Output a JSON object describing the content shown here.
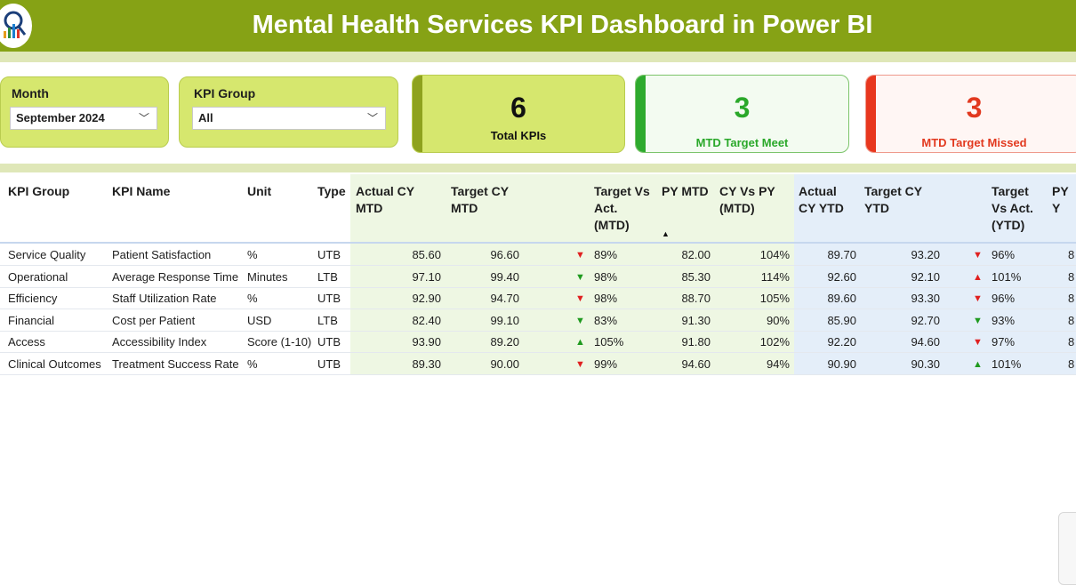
{
  "header": {
    "title": "Mental Health Services KPI Dashboard in Power BI",
    "logo_icon": "chart-logo-icon"
  },
  "slicers": {
    "month": {
      "label": "Month",
      "value": "September 2024"
    },
    "kpi_group": {
      "label": "KPI Group",
      "value": "All"
    }
  },
  "cards": {
    "total": {
      "value": "6",
      "caption": "Total KPIs"
    },
    "meet": {
      "value": "3",
      "caption": "MTD Target Meet"
    },
    "missed": {
      "value": "3",
      "caption": "MTD Target Missed"
    }
  },
  "colors": {
    "brand": "#86a215",
    "accent_light": "#d6e76e",
    "good": "#2aa82a",
    "bad": "#e2391f"
  },
  "table": {
    "headers": {
      "kpi_group": "KPI Group",
      "kpi_name": "KPI Name",
      "unit": "Unit",
      "type": "Type",
      "actual_cy_mtd": [
        "Actual CY",
        "MTD"
      ],
      "target_cy_mtd": [
        "Target CY",
        "MTD"
      ],
      "target_vs_act_mtd": [
        "Target Vs",
        "Act.",
        "(MTD)"
      ],
      "py_mtd": "PY MTD",
      "cy_vs_py_mtd": [
        "CY Vs PY",
        "(MTD)"
      ],
      "actual_cy_ytd": [
        "Actual",
        "CY YTD"
      ],
      "target_cy_ytd": [
        "Target CY",
        "YTD"
      ],
      "target_vs_act_ytd": [
        "Target",
        "Vs Act.",
        "(YTD)"
      ],
      "py_ytd": "PY Y"
    },
    "rows": [
      {
        "group": "Service Quality",
        "name": "Patient Satisfaction",
        "unit": "%",
        "type": "UTB",
        "act_mtd": "85.60",
        "tgt_mtd": "96.60",
        "mtd_ind": "down",
        "mtd_pct": "89%",
        "py_mtd": "82.00",
        "cy_py": "104%",
        "act_ytd": "89.70",
        "tgt_ytd": "93.20",
        "ytd_ind": "down",
        "ytd_pct": "96%",
        "py_ytd": "8"
      },
      {
        "group": "Operational",
        "name": "Average Response Time",
        "unit": "Minutes",
        "type": "LTB",
        "act_mtd": "97.10",
        "tgt_mtd": "99.40",
        "mtd_ind": "up-inverted",
        "mtd_pct": "98%",
        "py_mtd": "85.30",
        "cy_py": "114%",
        "act_ytd": "92.60",
        "tgt_ytd": "92.10",
        "ytd_ind": "up-red",
        "ytd_pct": "101%",
        "py_ytd": "8"
      },
      {
        "group": "Efficiency",
        "name": "Staff Utilization Rate",
        "unit": "%",
        "type": "UTB",
        "act_mtd": "92.90",
        "tgt_mtd": "94.70",
        "mtd_ind": "down",
        "mtd_pct": "98%",
        "py_mtd": "88.70",
        "cy_py": "105%",
        "act_ytd": "89.60",
        "tgt_ytd": "93.30",
        "ytd_ind": "down",
        "ytd_pct": "96%",
        "py_ytd": "8"
      },
      {
        "group": "Financial",
        "name": "Cost per Patient",
        "unit": "USD",
        "type": "LTB",
        "act_mtd": "82.40",
        "tgt_mtd": "99.10",
        "mtd_ind": "up-inverted",
        "mtd_pct": "83%",
        "py_mtd": "91.30",
        "cy_py": "90%",
        "act_ytd": "85.90",
        "tgt_ytd": "92.70",
        "ytd_ind": "up-inverted",
        "ytd_pct": "93%",
        "py_ytd": "8"
      },
      {
        "group": "Access",
        "name": "Accessibility Index",
        "unit": "Score (1-10)",
        "type": "UTB",
        "act_mtd": "93.90",
        "tgt_mtd": "89.20",
        "mtd_ind": "up",
        "mtd_pct": "105%",
        "py_mtd": "91.80",
        "cy_py": "102%",
        "act_ytd": "92.20",
        "tgt_ytd": "94.60",
        "ytd_ind": "down",
        "ytd_pct": "97%",
        "py_ytd": "8"
      },
      {
        "group": "Clinical Outcomes",
        "name": "Treatment Success Rate",
        "unit": "%",
        "type": "UTB",
        "act_mtd": "89.30",
        "tgt_mtd": "90.00",
        "mtd_ind": "down",
        "mtd_pct": "99%",
        "py_mtd": "94.60",
        "cy_py": "94%",
        "act_ytd": "90.90",
        "tgt_ytd": "90.30",
        "ytd_ind": "up",
        "ytd_pct": "101%",
        "py_ytd": "8"
      }
    ]
  }
}
